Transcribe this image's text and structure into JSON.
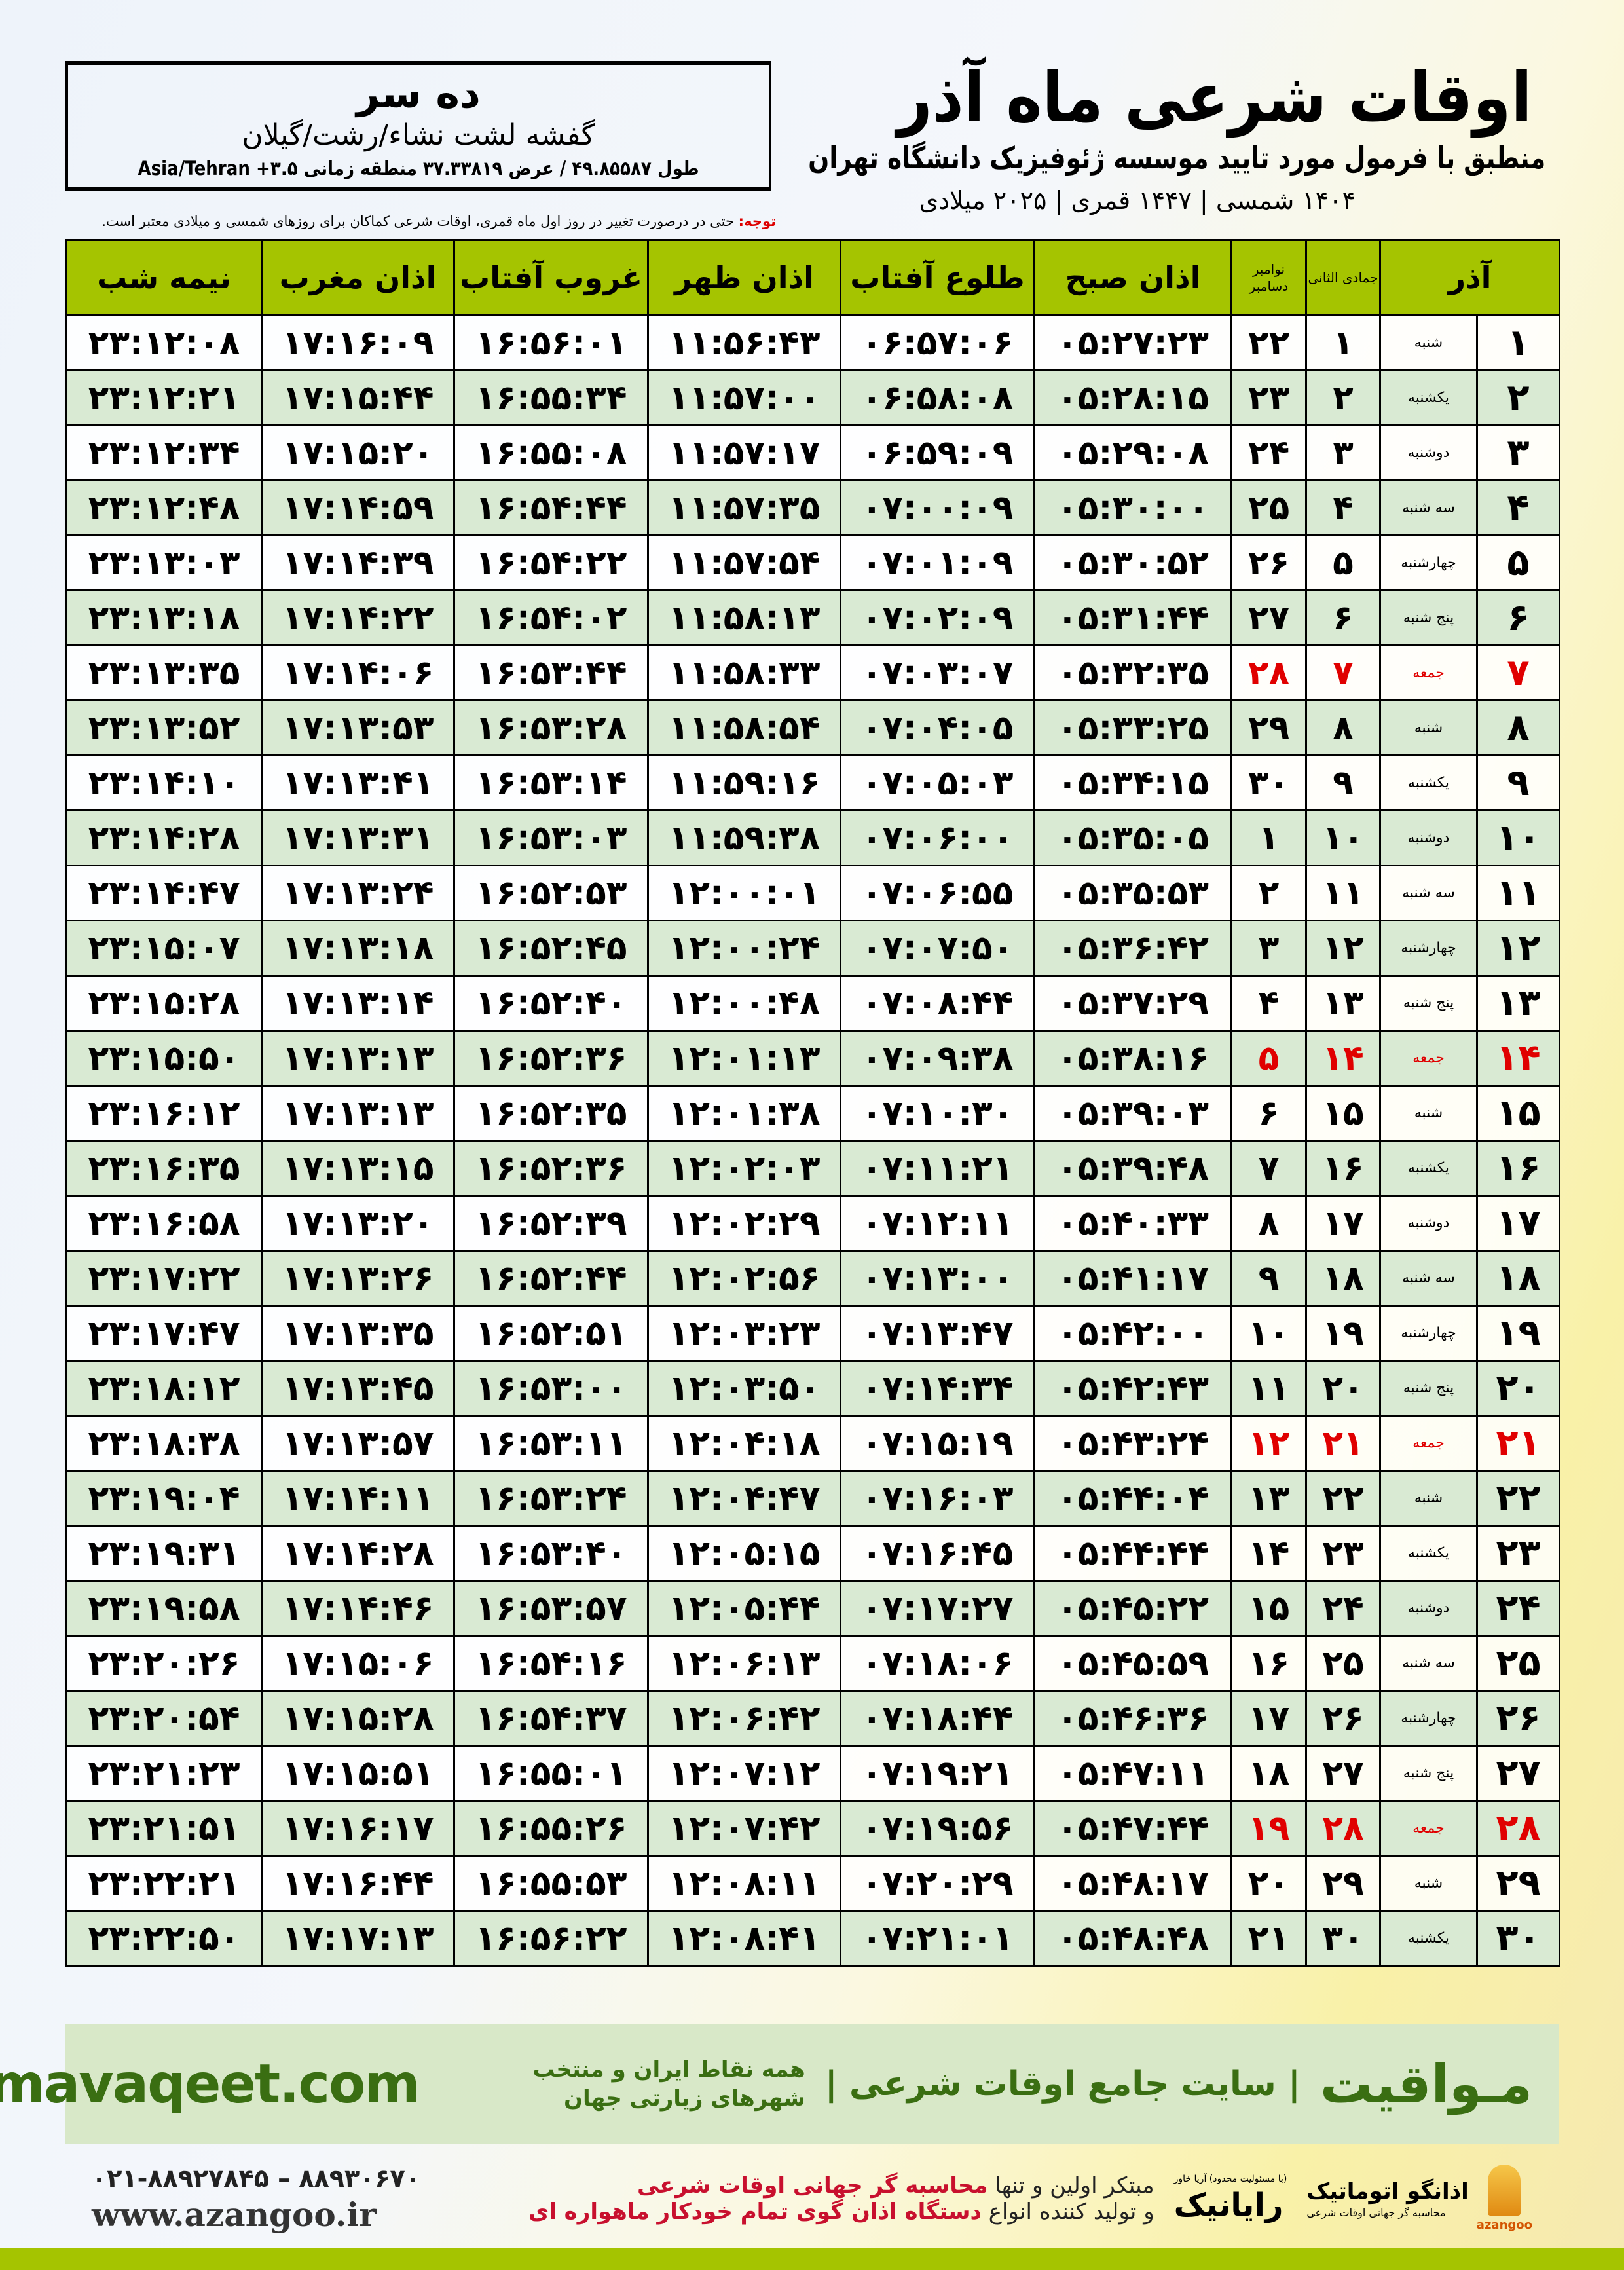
{
  "header": {
    "title": "اوقات شرعی ماه آذر",
    "subtitle": "منطبق با فرمول مورد تایید موسسه ژئوفیزیک دانشگاه تهران",
    "dates": "۱۴۰۴ شمسی | ۱۴۴۷ قمری | ۲۰۲۵ میلادی"
  },
  "location": {
    "name": "ده سر",
    "region": "گفشه لشت نشاء/رشت/گیلان",
    "coords": "طول ۴۹.۸۵۵۸۷ / عرض ۳۷.۳۳۸۱۹ منطقه زمانی ۳.۵+ Asia/Tehran"
  },
  "note": {
    "label": "توجه:",
    "text": " حتی در درصورت تغییر در روز اول ماه قمری، اوقات شرعی کماکان برای روزهای شمسی و میلادی معتبر است."
  },
  "table": {
    "headers": {
      "midnight": "نیمه شب",
      "maghrib": "اذان مغرب",
      "sunset": "غروب آفتاب",
      "dhuhr": "اذان ظهر",
      "sunrise": "طلوع آفتاب",
      "fajr": "اذان صبح",
      "gregorian": "نوامبر دسامبر",
      "hijri": "جمادی الثانی",
      "month": "آذر"
    },
    "rows": [
      {
        "day": "۱",
        "weekday": "شنبه",
        "hijri": "۱",
        "greg": "۲۲",
        "fajr": "۰۵:۲۷:۲۳",
        "sunrise": "۰۶:۵۷:۰۶",
        "dhuhr": "۱۱:۵۶:۴۳",
        "sunset": "۱۶:۵۶:۰۱",
        "maghrib": "۱۷:۱۶:۰۹",
        "midnight": "۲۳:۱۲:۰۸"
      },
      {
        "day": "۲",
        "weekday": "یکشنبه",
        "hijri": "۲",
        "greg": "۲۳",
        "fajr": "۰۵:۲۸:۱۵",
        "sunrise": "۰۶:۵۸:۰۸",
        "dhuhr": "۱۱:۵۷:۰۰",
        "sunset": "۱۶:۵۵:۳۴",
        "maghrib": "۱۷:۱۵:۴۴",
        "midnight": "۲۳:۱۲:۲۱"
      },
      {
        "day": "۳",
        "weekday": "دوشنبه",
        "hijri": "۳",
        "greg": "۲۴",
        "fajr": "۰۵:۲۹:۰۸",
        "sunrise": "۰۶:۵۹:۰۹",
        "dhuhr": "۱۱:۵۷:۱۷",
        "sunset": "۱۶:۵۵:۰۸",
        "maghrib": "۱۷:۱۵:۲۰",
        "midnight": "۲۳:۱۲:۳۴"
      },
      {
        "day": "۴",
        "weekday": "سه شنبه",
        "hijri": "۴",
        "greg": "۲۵",
        "fajr": "۰۵:۳۰:۰۰",
        "sunrise": "۰۷:۰۰:۰۹",
        "dhuhr": "۱۱:۵۷:۳۵",
        "sunset": "۱۶:۵۴:۴۴",
        "maghrib": "۱۷:۱۴:۵۹",
        "midnight": "۲۳:۱۲:۴۸"
      },
      {
        "day": "۵",
        "weekday": "چهارشنبه",
        "hijri": "۵",
        "greg": "۲۶",
        "fajr": "۰۵:۳۰:۵۲",
        "sunrise": "۰۷:۰۱:۰۹",
        "dhuhr": "۱۱:۵۷:۵۴",
        "sunset": "۱۶:۵۴:۲۲",
        "maghrib": "۱۷:۱۴:۳۹",
        "midnight": "۲۳:۱۳:۰۳"
      },
      {
        "day": "۶",
        "weekday": "پنج شنبه",
        "hijri": "۶",
        "greg": "۲۷",
        "fajr": "۰۵:۳۱:۴۴",
        "sunrise": "۰۷:۰۲:۰۹",
        "dhuhr": "۱۱:۵۸:۱۳",
        "sunset": "۱۶:۵۴:۰۲",
        "maghrib": "۱۷:۱۴:۲۲",
        "midnight": "۲۳:۱۳:۱۸"
      },
      {
        "day": "۷",
        "weekday": "جمعه",
        "hijri": "۷",
        "greg": "۲۸",
        "fajr": "۰۵:۳۲:۳۵",
        "sunrise": "۰۷:۰۳:۰۷",
        "dhuhr": "۱۱:۵۸:۳۳",
        "sunset": "۱۶:۵۳:۴۴",
        "maghrib": "۱۷:۱۴:۰۶",
        "midnight": "۲۳:۱۳:۳۵"
      },
      {
        "day": "۸",
        "weekday": "شنبه",
        "hijri": "۸",
        "greg": "۲۹",
        "fajr": "۰۵:۳۳:۲۵",
        "sunrise": "۰۷:۰۴:۰۵",
        "dhuhr": "۱۱:۵۸:۵۴",
        "sunset": "۱۶:۵۳:۲۸",
        "maghrib": "۱۷:۱۳:۵۳",
        "midnight": "۲۳:۱۳:۵۲"
      },
      {
        "day": "۹",
        "weekday": "یکشنبه",
        "hijri": "۹",
        "greg": "۳۰",
        "fajr": "۰۵:۳۴:۱۵",
        "sunrise": "۰۷:۰۵:۰۳",
        "dhuhr": "۱۱:۵۹:۱۶",
        "sunset": "۱۶:۵۳:۱۴",
        "maghrib": "۱۷:۱۳:۴۱",
        "midnight": "۲۳:۱۴:۱۰"
      },
      {
        "day": "۱۰",
        "weekday": "دوشنبه",
        "hijri": "۱۰",
        "greg": "۱",
        "fajr": "۰۵:۳۵:۰۵",
        "sunrise": "۰۷:۰۶:۰۰",
        "dhuhr": "۱۱:۵۹:۳۸",
        "sunset": "۱۶:۵۳:۰۳",
        "maghrib": "۱۷:۱۳:۳۱",
        "midnight": "۲۳:۱۴:۲۸"
      },
      {
        "day": "۱۱",
        "weekday": "سه شنبه",
        "hijri": "۱۱",
        "greg": "۲",
        "fajr": "۰۵:۳۵:۵۳",
        "sunrise": "۰۷:۰۶:۵۵",
        "dhuhr": "۱۲:۰۰:۰۱",
        "sunset": "۱۶:۵۲:۵۳",
        "maghrib": "۱۷:۱۳:۲۴",
        "midnight": "۲۳:۱۴:۴۷"
      },
      {
        "day": "۱۲",
        "weekday": "چهارشنبه",
        "hijri": "۱۲",
        "greg": "۳",
        "fajr": "۰۵:۳۶:۴۲",
        "sunrise": "۰۷:۰۷:۵۰",
        "dhuhr": "۱۲:۰۰:۲۴",
        "sunset": "۱۶:۵۲:۴۵",
        "maghrib": "۱۷:۱۳:۱۸",
        "midnight": "۲۳:۱۵:۰۷"
      },
      {
        "day": "۱۳",
        "weekday": "پنج شنبه",
        "hijri": "۱۳",
        "greg": "۴",
        "fajr": "۰۵:۳۷:۲۹",
        "sunrise": "۰۷:۰۸:۴۴",
        "dhuhr": "۱۲:۰۰:۴۸",
        "sunset": "۱۶:۵۲:۴۰",
        "maghrib": "۱۷:۱۳:۱۴",
        "midnight": "۲۳:۱۵:۲۸"
      },
      {
        "day": "۱۴",
        "weekday": "جمعه",
        "hijri": "۱۴",
        "greg": "۵",
        "fajr": "۰۵:۳۸:۱۶",
        "sunrise": "۰۷:۰۹:۳۸",
        "dhuhr": "۱۲:۰۱:۱۳",
        "sunset": "۱۶:۵۲:۳۶",
        "maghrib": "۱۷:۱۳:۱۳",
        "midnight": "۲۳:۱۵:۵۰"
      },
      {
        "day": "۱۵",
        "weekday": "شنبه",
        "hijri": "۱۵",
        "greg": "۶",
        "fajr": "۰۵:۳۹:۰۳",
        "sunrise": "۰۷:۱۰:۳۰",
        "dhuhr": "۱۲:۰۱:۳۸",
        "sunset": "۱۶:۵۲:۳۵",
        "maghrib": "۱۷:۱۳:۱۳",
        "midnight": "۲۳:۱۶:۱۲"
      },
      {
        "day": "۱۶",
        "weekday": "یکشنبه",
        "hijri": "۱۶",
        "greg": "۷",
        "fajr": "۰۵:۳۹:۴۸",
        "sunrise": "۰۷:۱۱:۲۱",
        "dhuhr": "۱۲:۰۲:۰۳",
        "sunset": "۱۶:۵۲:۳۶",
        "maghrib": "۱۷:۱۳:۱۵",
        "midnight": "۲۳:۱۶:۳۵"
      },
      {
        "day": "۱۷",
        "weekday": "دوشنبه",
        "hijri": "۱۷",
        "greg": "۸",
        "fajr": "۰۵:۴۰:۳۳",
        "sunrise": "۰۷:۱۲:۱۱",
        "dhuhr": "۱۲:۰۲:۲۹",
        "sunset": "۱۶:۵۲:۳۹",
        "maghrib": "۱۷:۱۳:۲۰",
        "midnight": "۲۳:۱۶:۵۸"
      },
      {
        "day": "۱۸",
        "weekday": "سه شنبه",
        "hijri": "۱۸",
        "greg": "۹",
        "fajr": "۰۵:۴۱:۱۷",
        "sunrise": "۰۷:۱۳:۰۰",
        "dhuhr": "۱۲:۰۲:۵۶",
        "sunset": "۱۶:۵۲:۴۴",
        "maghrib": "۱۷:۱۳:۲۶",
        "midnight": "۲۳:۱۷:۲۲"
      },
      {
        "day": "۱۹",
        "weekday": "چهارشنبه",
        "hijri": "۱۹",
        "greg": "۱۰",
        "fajr": "۰۵:۴۲:۰۰",
        "sunrise": "۰۷:۱۳:۴۷",
        "dhuhr": "۱۲:۰۳:۲۳",
        "sunset": "۱۶:۵۲:۵۱",
        "maghrib": "۱۷:۱۳:۳۵",
        "midnight": "۲۳:۱۷:۴۷"
      },
      {
        "day": "۲۰",
        "weekday": "پنج شنبه",
        "hijri": "۲۰",
        "greg": "۱۱",
        "fajr": "۰۵:۴۲:۴۳",
        "sunrise": "۰۷:۱۴:۳۴",
        "dhuhr": "۱۲:۰۳:۵۰",
        "sunset": "۱۶:۵۳:۰۰",
        "maghrib": "۱۷:۱۳:۴۵",
        "midnight": "۲۳:۱۸:۱۲"
      },
      {
        "day": "۲۱",
        "weekday": "جمعه",
        "hijri": "۲۱",
        "greg": "۱۲",
        "fajr": "۰۵:۴۳:۲۴",
        "sunrise": "۰۷:۱۵:۱۹",
        "dhuhr": "۱۲:۰۴:۱۸",
        "sunset": "۱۶:۵۳:۱۱",
        "maghrib": "۱۷:۱۳:۵۷",
        "midnight": "۲۳:۱۸:۳۸"
      },
      {
        "day": "۲۲",
        "weekday": "شنبه",
        "hijri": "۲۲",
        "greg": "۱۳",
        "fajr": "۰۵:۴۴:۰۴",
        "sunrise": "۰۷:۱۶:۰۳",
        "dhuhr": "۱۲:۰۴:۴۷",
        "sunset": "۱۶:۵۳:۲۴",
        "maghrib": "۱۷:۱۴:۱۱",
        "midnight": "۲۳:۱۹:۰۴"
      },
      {
        "day": "۲۳",
        "weekday": "یکشنبه",
        "hijri": "۲۳",
        "greg": "۱۴",
        "fajr": "۰۵:۴۴:۴۴",
        "sunrise": "۰۷:۱۶:۴۵",
        "dhuhr": "۱۲:۰۵:۱۵",
        "sunset": "۱۶:۵۳:۴۰",
        "maghrib": "۱۷:۱۴:۲۸",
        "midnight": "۲۳:۱۹:۳۱"
      },
      {
        "day": "۲۴",
        "weekday": "دوشنبه",
        "hijri": "۲۴",
        "greg": "۱۵",
        "fajr": "۰۵:۴۵:۲۲",
        "sunrise": "۰۷:۱۷:۲۷",
        "dhuhr": "۱۲:۰۵:۴۴",
        "sunset": "۱۶:۵۳:۵۷",
        "maghrib": "۱۷:۱۴:۴۶",
        "midnight": "۲۳:۱۹:۵۸"
      },
      {
        "day": "۲۵",
        "weekday": "سه شنبه",
        "hijri": "۲۵",
        "greg": "۱۶",
        "fajr": "۰۵:۴۵:۵۹",
        "sunrise": "۰۷:۱۸:۰۶",
        "dhuhr": "۱۲:۰۶:۱۳",
        "sunset": "۱۶:۵۴:۱۶",
        "maghrib": "۱۷:۱۵:۰۶",
        "midnight": "۲۳:۲۰:۲۶"
      },
      {
        "day": "۲۶",
        "weekday": "چهارشنبه",
        "hijri": "۲۶",
        "greg": "۱۷",
        "fajr": "۰۵:۴۶:۳۶",
        "sunrise": "۰۷:۱۸:۴۴",
        "dhuhr": "۱۲:۰۶:۴۲",
        "sunset": "۱۶:۵۴:۳۷",
        "maghrib": "۱۷:۱۵:۲۸",
        "midnight": "۲۳:۲۰:۵۴"
      },
      {
        "day": "۲۷",
        "weekday": "پنج شنبه",
        "hijri": "۲۷",
        "greg": "۱۸",
        "fajr": "۰۵:۴۷:۱۱",
        "sunrise": "۰۷:۱۹:۲۱",
        "dhuhr": "۱۲:۰۷:۱۲",
        "sunset": "۱۶:۵۵:۰۱",
        "maghrib": "۱۷:۱۵:۵۱",
        "midnight": "۲۳:۲۱:۲۳"
      },
      {
        "day": "۲۸",
        "weekday": "جمعه",
        "hijri": "۲۸",
        "greg": "۱۹",
        "fajr": "۰۵:۴۷:۴۴",
        "sunrise": "۰۷:۱۹:۵۶",
        "dhuhr": "۱۲:۰۷:۴۲",
        "sunset": "۱۶:۵۵:۲۶",
        "maghrib": "۱۷:۱۶:۱۷",
        "midnight": "۲۳:۲۱:۵۱"
      },
      {
        "day": "۲۹",
        "weekday": "شنبه",
        "hijri": "۲۹",
        "greg": "۲۰",
        "fajr": "۰۵:۴۸:۱۷",
        "sunrise": "۰۷:۲۰:۲۹",
        "dhuhr": "۱۲:۰۸:۱۱",
        "sunset": "۱۶:۵۵:۵۳",
        "maghrib": "۱۷:۱۶:۴۴",
        "midnight": "۲۳:۲۲:۲۱"
      },
      {
        "day": "۳۰",
        "weekday": "یکشنبه",
        "hijri": "۳۰",
        "greg": "۲۱",
        "fajr": "۰۵:۴۸:۴۸",
        "sunrise": "۰۷:۲۱:۰۱",
        "dhuhr": "۱۲:۰۸:۴۱",
        "sunset": "۱۶:۵۶:۲۲",
        "maghrib": "۱۷:۱۷:۱۳",
        "midnight": "۲۳:۲۲:۵۰"
      }
    ],
    "friday_label": "جمعه",
    "colors": {
      "header": "#a5c400",
      "row_alt": "#d9ead3",
      "friday": "#e00000"
    }
  },
  "banner": {
    "brand": "مـواقیت",
    "slogan": "| سایت جامع اوقات شرعی |",
    "desc": "همه نقاط ایران و منتخب شهرهای زیارتی جهان",
    "site": "mavaqeet.com"
  },
  "footer": {
    "phone": "۰۲۱-۸۸۹۲۷۸۴۵ – ۸۸۹۳۰۶۷۰",
    "web": "www.azangoo.ir",
    "promo1_a": "مبتکر اولین و تنها ",
    "promo1_b": "محاسبه گر جهانی اوقات شرعی",
    "promo2_a": "و تولید کننده انواع ",
    "promo2_b": "دستگاه اذان گوی تمام خودکار ماهواره ای",
    "raynik": "رایانیک",
    "raynik_small": "(با مسئولیت محدود) آریا خاور",
    "azangoo_name": "اذانگو اتوماتیک",
    "azangoo_sub": "محاسبه گر جهانی اوقات شرعی",
    "azangoo_latin": "azangoo"
  }
}
